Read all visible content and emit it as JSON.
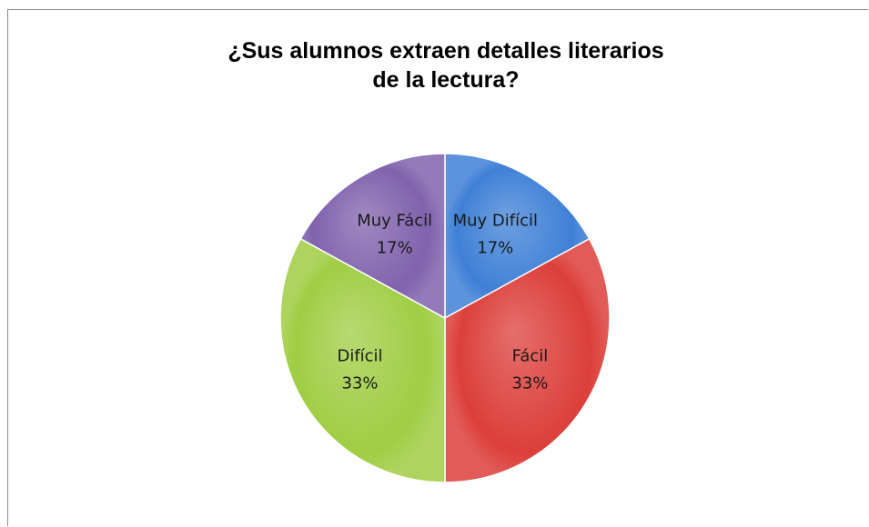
{
  "chart_data": {
    "type": "pie",
    "title": "¿Sus alumnos extraen detalles literarios de la lectura?",
    "categories": [
      "Muy Difícil",
      "Fácil",
      "Difícil",
      "Muy Fácil"
    ],
    "values": [
      17,
      33,
      33,
      17
    ],
    "value_labels": [
      "17%",
      "33%",
      "33%",
      "17%"
    ],
    "colors": [
      "#3f80d6",
      "#dc3f3a",
      "#9fcd43",
      "#8062ad"
    ]
  }
}
